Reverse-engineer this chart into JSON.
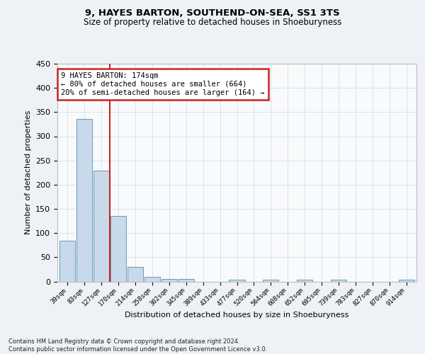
{
  "title": "9, HAYES BARTON, SOUTHEND-ON-SEA, SS1 3TS",
  "subtitle": "Size of property relative to detached houses in Shoeburyness",
  "xlabel": "Distribution of detached houses by size in Shoeburyness",
  "ylabel": "Number of detached properties",
  "categories": [
    "39sqm",
    "83sqm",
    "127sqm",
    "170sqm",
    "214sqm",
    "258sqm",
    "302sqm",
    "345sqm",
    "389sqm",
    "433sqm",
    "477sqm",
    "520sqm",
    "564sqm",
    "608sqm",
    "652sqm",
    "695sqm",
    "739sqm",
    "783sqm",
    "827sqm",
    "870sqm",
    "914sqm"
  ],
  "bar_values": [
    84,
    336,
    229,
    136,
    30,
    10,
    5,
    5,
    0,
    0,
    3,
    0,
    3,
    0,
    3,
    0,
    3,
    0,
    0,
    0,
    3
  ],
  "bar_color": "#c8daea",
  "bar_edge_color": "#6699bb",
  "vline_bin": 3,
  "vline_color": "#cc2222",
  "annotation_line1": "9 HAYES BARTON: 174sqm",
  "annotation_line2": "← 80% of detached houses are smaller (664)",
  "annotation_line3": "20% of semi-detached houses are larger (164) →",
  "annotation_box_color": "#ffffff",
  "annotation_box_edge": "#cc2222",
  "ylim": [
    0,
    450
  ],
  "yticks": [
    0,
    50,
    100,
    150,
    200,
    250,
    300,
    350,
    400,
    450
  ],
  "footer_line1": "Contains HM Land Registry data © Crown copyright and database right 2024.",
  "footer_line2": "Contains public sector information licensed under the Open Government Licence v3.0.",
  "bg_color": "#eef2f7",
  "plot_bg_color": "#f8fafc",
  "grid_color": "#d0d8e0",
  "title_fontsize": 9.5,
  "subtitle_fontsize": 8.5
}
